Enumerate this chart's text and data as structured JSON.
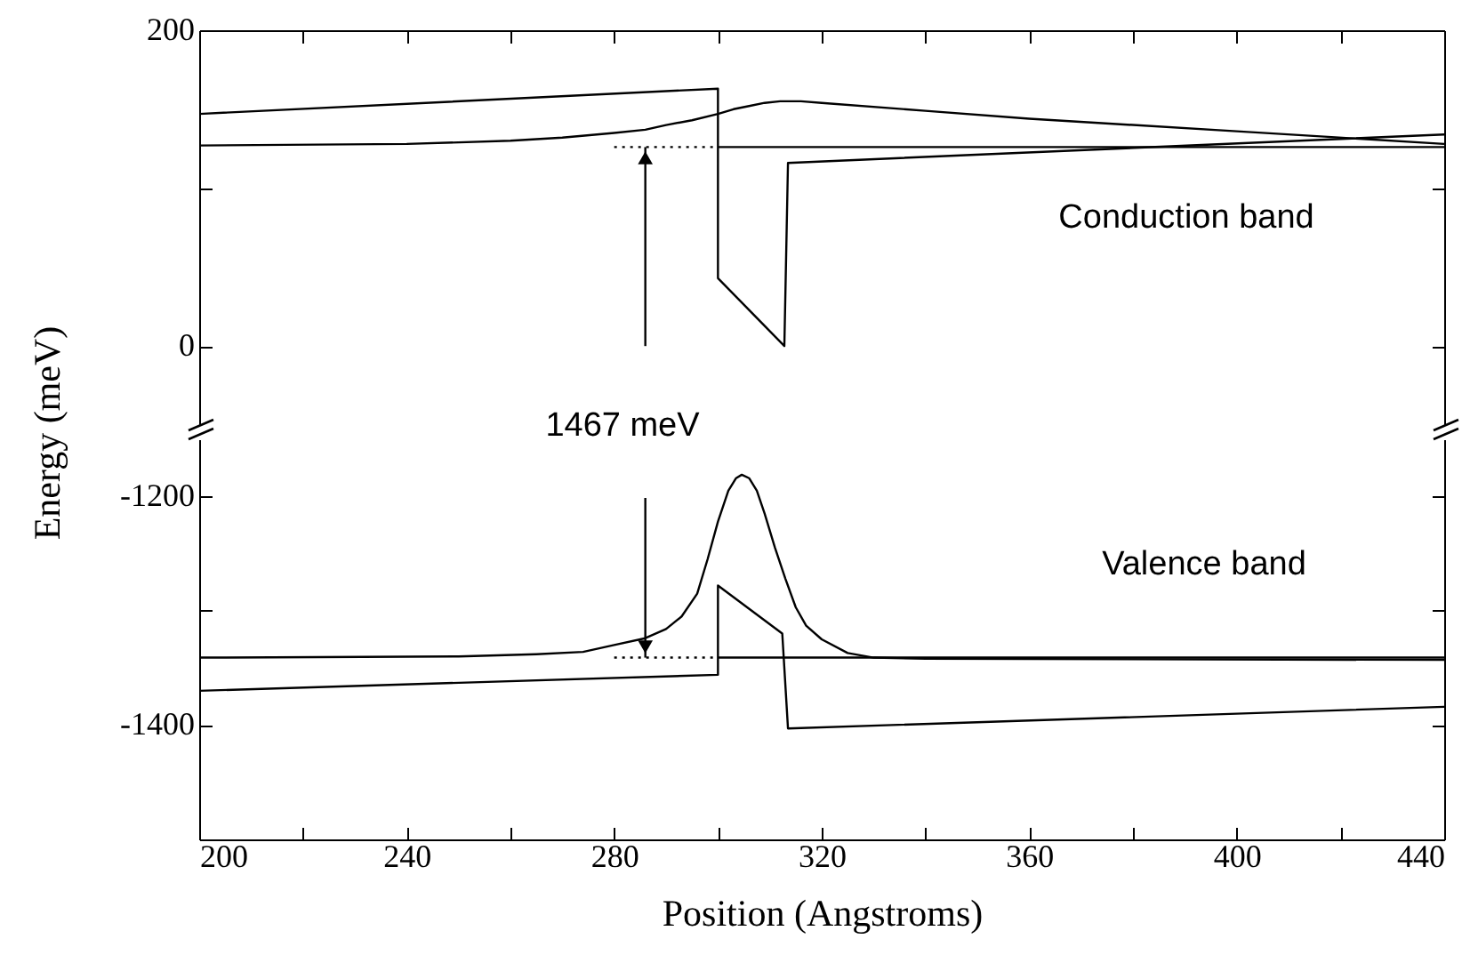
{
  "chart_data": [
    {
      "type": "line",
      "ylabel": "Energy (meV)",
      "xlim": [
        200,
        440
      ],
      "xticks": [
        200,
        {
          "value": 220,
          "label": null
        },
        240,
        {
          "value": 260,
          "label": null
        },
        280,
        {
          "value": 300,
          "label": null
        },
        320,
        {
          "value": 340,
          "label": null
        },
        360,
        {
          "value": 380,
          "label": null
        },
        400,
        {
          "value": 420,
          "label": null
        },
        440
      ],
      "ylim": [
        -50,
        200
      ],
      "yticks": [
        0,
        {
          "value": 100,
          "label": null
        },
        200
      ],
      "tick_labels": "y",
      "marker": "none",
      "annotations": [
        "Conduction band",
        "1467 meV"
      ],
      "series": [
        {
          "color": "#000000",
          "line_style": "solid",
          "x": [
            200,
            300,
            300,
            312.8,
            313.5,
            440
          ],
          "values": [
            147,
            163,
            43,
            0,
            116,
            134
          ]
        },
        {
          "color": "#000000",
          "line_style": "solid",
          "x": [
            200,
            240,
            260,
            270,
            280,
            286,
            290,
            295,
            300,
            303,
            306,
            309,
            312,
            316,
            320,
            340,
            360,
            400,
            440
          ],
          "values": [
            127,
            128,
            130,
            132,
            135,
            137,
            140,
            143,
            147,
            150,
            152,
            154,
            155,
            155,
            154,
            149,
            144,
            136,
            128
          ]
        },
        {
          "color": "#000000",
          "line_style": "solid",
          "x": [
            300,
            440
          ],
          "values": [
            126,
            126
          ]
        },
        {
          "color": "#000000",
          "line_style": "dotted",
          "x": [
            280,
            300
          ],
          "values": [
            126,
            126
          ]
        }
      ]
    },
    {
      "type": "line",
      "xlabel": "Position (Angstroms)",
      "xlim": [
        200,
        440
      ],
      "xticks": [
        200,
        {
          "value": 220,
          "label": null
        },
        240,
        {
          "value": 260,
          "label": null
        },
        280,
        {
          "value": 300,
          "label": null
        },
        320,
        {
          "value": 340,
          "label": null
        },
        360,
        {
          "value": 380,
          "label": null
        },
        400,
        {
          "value": 420,
          "label": null
        },
        440
      ],
      "ylim": [
        -1500,
        -1150
      ],
      "yticks": [
        -1200,
        {
          "value": -1300,
          "label": null
        },
        -1400
      ],
      "marker": "none",
      "annotations": [
        "Valence band"
      ],
      "series": [
        {
          "color": "#000000",
          "line_style": "solid",
          "x": [
            200,
            300,
            300,
            312.4,
            313.5,
            440
          ],
          "values": [
            -1370,
            -1356,
            -1278,
            -1320,
            -1403,
            -1384
          ]
        },
        {
          "color": "#000000",
          "line_style": "solid",
          "x": [
            200,
            250,
            265,
            274,
            280,
            286,
            290,
            293,
            296,
            298,
            300,
            302,
            303.5,
            304.6,
            306,
            307.5,
            309,
            311,
            313,
            315,
            317,
            320,
            325,
            330,
            340,
            440
          ],
          "values": [
            -1341,
            -1340,
            -1338,
            -1336,
            -1330,
            -1324,
            -1316,
            -1305,
            -1285,
            -1255,
            -1222,
            -1195,
            -1184,
            -1181,
            -1184,
            -1195,
            -1215,
            -1245,
            -1272,
            -1297,
            -1313,
            -1325,
            -1337,
            -1341,
            -1342,
            -1343
          ]
        },
        {
          "color": "#000000",
          "line_style": "solid",
          "x": [
            300,
            440
          ],
          "values": [
            -1341,
            -1341
          ]
        },
        {
          "color": "#000000",
          "line_style": "dotted",
          "x": [
            280,
            300
          ],
          "values": [
            -1341,
            -1341
          ]
        }
      ]
    }
  ]
}
